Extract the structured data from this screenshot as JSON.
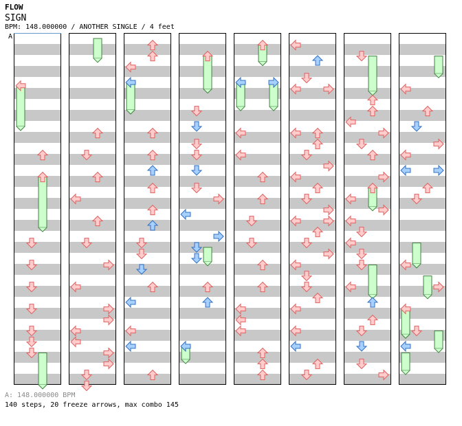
{
  "song": {
    "artist": "FLOW",
    "title": "SIGN",
    "info": "BPM: 148.000000 / ANOTHER SINGLE / 4 feet"
  },
  "bpm_marker": {
    "label": "A",
    "footer": "A: 148.000000 BPM"
  },
  "stats": "140 steps, 20 freeze arrows, max combo 145",
  "colors": {
    "band": "#c8c8c8",
    "column_border": "#000000",
    "arrow_red_fill": "#ffcccc",
    "arrow_red_stroke": "#e06060",
    "arrow_blue_fill": "#a8d0ff",
    "arrow_blue_stroke": "#3070c0",
    "freeze_fill": "#ccffcc",
    "freeze_stroke": "#408040",
    "bpm_line": "#6699cc"
  },
  "chart_data": {
    "type": "step-chart",
    "columns": 8,
    "beats_per_column": 16,
    "lanes": [
      "left",
      "down",
      "up",
      "right"
    ],
    "notes": [
      {
        "col": 0,
        "beat": 4.3,
        "lane": "left",
        "color": "red"
      },
      {
        "col": 0,
        "beat": 10.6,
        "lane": "up",
        "color": "red"
      },
      {
        "col": 0,
        "beat": 12.6,
        "lane": "up",
        "color": "red"
      },
      {
        "col": 0,
        "beat": 18.6,
        "lane": "down",
        "color": "red"
      },
      {
        "col": 0,
        "beat": 20.6,
        "lane": "down",
        "color": "red"
      },
      {
        "col": 0,
        "beat": 22.6,
        "lane": "down",
        "color": "red"
      },
      {
        "col": 0,
        "beat": 24.6,
        "lane": "down",
        "color": "red"
      },
      {
        "col": 0,
        "beat": 26.6,
        "lane": "down",
        "color": "red"
      },
      {
        "col": 0,
        "beat": 27.6,
        "lane": "down",
        "color": "red"
      },
      {
        "col": 0,
        "beat": 28.6,
        "lane": "down",
        "color": "red"
      },
      {
        "col": 1,
        "beat": 8.6,
        "lane": "up",
        "color": "red"
      },
      {
        "col": 1,
        "beat": 10.6,
        "lane": "down",
        "color": "red"
      },
      {
        "col": 1,
        "beat": 12.6,
        "lane": "up",
        "color": "red"
      },
      {
        "col": 1,
        "beat": 14.6,
        "lane": "left",
        "color": "red"
      },
      {
        "col": 1,
        "beat": 16.6,
        "lane": "up",
        "color": "red"
      },
      {
        "col": 1,
        "beat": 18.6,
        "lane": "down",
        "color": "red"
      },
      {
        "col": 1,
        "beat": 20.6,
        "lane": "right",
        "color": "red"
      },
      {
        "col": 1,
        "beat": 22.6,
        "lane": "left",
        "color": "red"
      },
      {
        "col": 1,
        "beat": 24.6,
        "lane": "right",
        "color": "red"
      },
      {
        "col": 1,
        "beat": 25.6,
        "lane": "right",
        "color": "red"
      },
      {
        "col": 1,
        "beat": 26.6,
        "lane": "left",
        "color": "red"
      },
      {
        "col": 1,
        "beat": 27.6,
        "lane": "left",
        "color": "red"
      },
      {
        "col": 1,
        "beat": 28.6,
        "lane": "right",
        "color": "red"
      },
      {
        "col": 1,
        "beat": 29.6,
        "lane": "right",
        "color": "red"
      },
      {
        "col": 1,
        "beat": 30.6,
        "lane": "down",
        "color": "red"
      },
      {
        "col": 1,
        "beat": 31.6,
        "lane": "down",
        "color": "red"
      },
      {
        "col": 2,
        "beat": 0.6,
        "lane": "up",
        "color": "red"
      },
      {
        "col": 2,
        "beat": 1.6,
        "lane": "up",
        "color": "red"
      },
      {
        "col": 2,
        "beat": 2.6,
        "lane": "left",
        "color": "red"
      },
      {
        "col": 2,
        "beat": 4.0,
        "lane": "left",
        "color": "blue"
      },
      {
        "col": 2,
        "beat": 8.6,
        "lane": "up",
        "color": "red"
      },
      {
        "col": 2,
        "beat": 10.6,
        "lane": "up",
        "color": "red"
      },
      {
        "col": 2,
        "beat": 12.0,
        "lane": "up",
        "color": "blue"
      },
      {
        "col": 2,
        "beat": 13.6,
        "lane": "up",
        "color": "red"
      },
      {
        "col": 2,
        "beat": 15.6,
        "lane": "up",
        "color": "red"
      },
      {
        "col": 2,
        "beat": 17.0,
        "lane": "up",
        "color": "blue"
      },
      {
        "col": 2,
        "beat": 18.6,
        "lane": "down",
        "color": "red"
      },
      {
        "col": 2,
        "beat": 19.6,
        "lane": "down",
        "color": "red"
      },
      {
        "col": 2,
        "beat": 21.0,
        "lane": "down",
        "color": "blue"
      },
      {
        "col": 2,
        "beat": 22.6,
        "lane": "up",
        "color": "red"
      },
      {
        "col": 2,
        "beat": 24.0,
        "lane": "left",
        "color": "blue"
      },
      {
        "col": 2,
        "beat": 26.6,
        "lane": "left",
        "color": "red"
      },
      {
        "col": 2,
        "beat": 28.0,
        "lane": "left",
        "color": "blue"
      },
      {
        "col": 2,
        "beat": 30.6,
        "lane": "up",
        "color": "red"
      },
      {
        "col": 2,
        "beat": 32.0,
        "lane": "up",
        "color": "blue"
      },
      {
        "col": 3,
        "beat": 1.6,
        "lane": "up",
        "color": "red"
      },
      {
        "col": 3,
        "beat": 6.6,
        "lane": "down",
        "color": "red"
      },
      {
        "col": 3,
        "beat": 8.0,
        "lane": "down",
        "color": "blue"
      },
      {
        "col": 3,
        "beat": 9.6,
        "lane": "down",
        "color": "red"
      },
      {
        "col": 3,
        "beat": 10.6,
        "lane": "down",
        "color": "red"
      },
      {
        "col": 3,
        "beat": 12.0,
        "lane": "down",
        "color": "blue"
      },
      {
        "col": 3,
        "beat": 13.6,
        "lane": "down",
        "color": "red"
      },
      {
        "col": 3,
        "beat": 14.6,
        "lane": "right",
        "color": "red"
      },
      {
        "col": 3,
        "beat": 16.0,
        "lane": "left",
        "color": "blue"
      },
      {
        "col": 3,
        "beat": 18.0,
        "lane": "right",
        "color": "blue"
      },
      {
        "col": 3,
        "beat": 19.0,
        "lane": "down",
        "color": "blue"
      },
      {
        "col": 3,
        "beat": 20.0,
        "lane": "down",
        "color": "blue"
      },
      {
        "col": 3,
        "beat": 22.6,
        "lane": "up",
        "color": "red"
      },
      {
        "col": 3,
        "beat": 24.0,
        "lane": "up",
        "color": "blue"
      },
      {
        "col": 3,
        "beat": 28.0,
        "lane": "left",
        "color": "blue"
      },
      {
        "col": 4,
        "beat": 0.6,
        "lane": "up",
        "color": "red"
      },
      {
        "col": 4,
        "beat": 4.0,
        "lane": "left",
        "color": "blue"
      },
      {
        "col": 4,
        "beat": 4.0,
        "lane": "right",
        "color": "blue"
      },
      {
        "col": 4,
        "beat": 8.6,
        "lane": "left",
        "color": "red"
      },
      {
        "col": 4,
        "beat": 10.6,
        "lane": "left",
        "color": "red"
      },
      {
        "col": 4,
        "beat": 12.6,
        "lane": "up",
        "color": "red"
      },
      {
        "col": 4,
        "beat": 14.6,
        "lane": "up",
        "color": "red"
      },
      {
        "col": 4,
        "beat": 16.6,
        "lane": "down",
        "color": "red"
      },
      {
        "col": 4,
        "beat": 18.6,
        "lane": "down",
        "color": "red"
      },
      {
        "col": 4,
        "beat": 20.6,
        "lane": "up",
        "color": "red"
      },
      {
        "col": 4,
        "beat": 22.6,
        "lane": "up",
        "color": "red"
      },
      {
        "col": 4,
        "beat": 24.6,
        "lane": "left",
        "color": "red"
      },
      {
        "col": 4,
        "beat": 25.6,
        "lane": "left",
        "color": "red"
      },
      {
        "col": 4,
        "beat": 26.6,
        "lane": "left",
        "color": "red"
      },
      {
        "col": 4,
        "beat": 28.6,
        "lane": "up",
        "color": "red"
      },
      {
        "col": 4,
        "beat": 29.6,
        "lane": "up",
        "color": "red"
      },
      {
        "col": 4,
        "beat": 30.6,
        "lane": "up",
        "color": "red"
      },
      {
        "col": 5,
        "beat": 0.6,
        "lane": "left",
        "color": "red"
      },
      {
        "col": 5,
        "beat": 2.0,
        "lane": "up",
        "color": "blue"
      },
      {
        "col": 5,
        "beat": 3.6,
        "lane": "down",
        "color": "red"
      },
      {
        "col": 5,
        "beat": 4.6,
        "lane": "left",
        "color": "red"
      },
      {
        "col": 5,
        "beat": 4.6,
        "lane": "right",
        "color": "red"
      },
      {
        "col": 5,
        "beat": 8.6,
        "lane": "left",
        "color": "red"
      },
      {
        "col": 5,
        "beat": 8.6,
        "lane": "up",
        "color": "red"
      },
      {
        "col": 5,
        "beat": 9.6,
        "lane": "up",
        "color": "red"
      },
      {
        "col": 5,
        "beat": 10.6,
        "lane": "down",
        "color": "red"
      },
      {
        "col": 5,
        "beat": 11.6,
        "lane": "right",
        "color": "red"
      },
      {
        "col": 5,
        "beat": 12.6,
        "lane": "left",
        "color": "red"
      },
      {
        "col": 5,
        "beat": 13.6,
        "lane": "up",
        "color": "red"
      },
      {
        "col": 5,
        "beat": 14.6,
        "lane": "down",
        "color": "red"
      },
      {
        "col": 5,
        "beat": 15.6,
        "lane": "right",
        "color": "red"
      },
      {
        "col": 5,
        "beat": 16.6,
        "lane": "left",
        "color": "red"
      },
      {
        "col": 5,
        "beat": 16.6,
        "lane": "right",
        "color": "red"
      },
      {
        "col": 5,
        "beat": 17.6,
        "lane": "up",
        "color": "red"
      },
      {
        "col": 5,
        "beat": 18.6,
        "lane": "down",
        "color": "red"
      },
      {
        "col": 5,
        "beat": 19.6,
        "lane": "right",
        "color": "red"
      },
      {
        "col": 5,
        "beat": 20.6,
        "lane": "left",
        "color": "red"
      },
      {
        "col": 5,
        "beat": 21.6,
        "lane": "down",
        "color": "red"
      },
      {
        "col": 5,
        "beat": 22.6,
        "lane": "down",
        "color": "red"
      },
      {
        "col": 5,
        "beat": 23.6,
        "lane": "up",
        "color": "red"
      },
      {
        "col": 5,
        "beat": 24.6,
        "lane": "left",
        "color": "red"
      },
      {
        "col": 5,
        "beat": 26.6,
        "lane": "left",
        "color": "red"
      },
      {
        "col": 5,
        "beat": 28.0,
        "lane": "left",
        "color": "blue"
      },
      {
        "col": 5,
        "beat": 29.6,
        "lane": "up",
        "color": "red"
      },
      {
        "col": 5,
        "beat": 30.6,
        "lane": "down",
        "color": "red"
      },
      {
        "col": 5,
        "beat": 32.0,
        "lane": "down",
        "color": "blue"
      },
      {
        "col": 6,
        "beat": 1.6,
        "lane": "down",
        "color": "red"
      },
      {
        "col": 6,
        "beat": 5.6,
        "lane": "up",
        "color": "red"
      },
      {
        "col": 6,
        "beat": 6.6,
        "lane": "up",
        "color": "red"
      },
      {
        "col": 6,
        "beat": 7.6,
        "lane": "left",
        "color": "red"
      },
      {
        "col": 6,
        "beat": 8.6,
        "lane": "right",
        "color": "red"
      },
      {
        "col": 6,
        "beat": 9.6,
        "lane": "down",
        "color": "red"
      },
      {
        "col": 6,
        "beat": 10.6,
        "lane": "up",
        "color": "red"
      },
      {
        "col": 6,
        "beat": 12.6,
        "lane": "right",
        "color": "red"
      },
      {
        "col": 6,
        "beat": 13.6,
        "lane": "up",
        "color": "red"
      },
      {
        "col": 6,
        "beat": 14.6,
        "lane": "left",
        "color": "red"
      },
      {
        "col": 6,
        "beat": 15.6,
        "lane": "right",
        "color": "red"
      },
      {
        "col": 6,
        "beat": 16.6,
        "lane": "left",
        "color": "red"
      },
      {
        "col": 6,
        "beat": 17.6,
        "lane": "down",
        "color": "red"
      },
      {
        "col": 6,
        "beat": 18.6,
        "lane": "left",
        "color": "red"
      },
      {
        "col": 6,
        "beat": 19.6,
        "lane": "down",
        "color": "red"
      },
      {
        "col": 6,
        "beat": 20.6,
        "lane": "down",
        "color": "red"
      },
      {
        "col": 6,
        "beat": 22.6,
        "lane": "left",
        "color": "red"
      },
      {
        "col": 6,
        "beat": 24.0,
        "lane": "up",
        "color": "blue"
      },
      {
        "col": 6,
        "beat": 25.6,
        "lane": "up",
        "color": "red"
      },
      {
        "col": 6,
        "beat": 26.6,
        "lane": "down",
        "color": "red"
      },
      {
        "col": 6,
        "beat": 28.0,
        "lane": "down",
        "color": "blue"
      },
      {
        "col": 6,
        "beat": 29.6,
        "lane": "down",
        "color": "red"
      },
      {
        "col": 6,
        "beat": 30.6,
        "lane": "right",
        "color": "red"
      },
      {
        "col": 6,
        "beat": 32.0,
        "lane": "right",
        "color": "blue"
      },
      {
        "col": 7,
        "beat": 4.6,
        "lane": "left",
        "color": "red"
      },
      {
        "col": 7,
        "beat": 6.6,
        "lane": "up",
        "color": "red"
      },
      {
        "col": 7,
        "beat": 8.0,
        "lane": "down",
        "color": "blue"
      },
      {
        "col": 7,
        "beat": 9.6,
        "lane": "right",
        "color": "red"
      },
      {
        "col": 7,
        "beat": 10.6,
        "lane": "left",
        "color": "red"
      },
      {
        "col": 7,
        "beat": 12.0,
        "lane": "left",
        "color": "blue"
      },
      {
        "col": 7,
        "beat": 12.0,
        "lane": "right",
        "color": "blue"
      },
      {
        "col": 7,
        "beat": 13.6,
        "lane": "up",
        "color": "red"
      },
      {
        "col": 7,
        "beat": 14.6,
        "lane": "down",
        "color": "red"
      },
      {
        "col": 7,
        "beat": 20.6,
        "lane": "left",
        "color": "red"
      },
      {
        "col": 7,
        "beat": 22.6,
        "lane": "right",
        "color": "red"
      },
      {
        "col": 7,
        "beat": 24.6,
        "lane": "left",
        "color": "red"
      },
      {
        "col": 7,
        "beat": 26.6,
        "lane": "down",
        "color": "red"
      },
      {
        "col": 7,
        "beat": 28.0,
        "lane": "left",
        "color": "blue"
      }
    ],
    "freezes": [
      {
        "col": 0,
        "lane": "left",
        "start": 4.3,
        "end": 8.0,
        "color": "red"
      },
      {
        "col": 0,
        "lane": "down",
        "start": 0,
        "end": 0.1,
        "color": "none"
      },
      {
        "col": 0,
        "lane": "up",
        "start": 12.6,
        "end": 17.2,
        "color": "red"
      },
      {
        "col": 0,
        "lane": "up",
        "start": 28.6,
        "end": 32.0,
        "color": "red"
      },
      {
        "col": 1,
        "lane": "up",
        "start": 0,
        "end": 1.8,
        "color": "none"
      },
      {
        "col": 2,
        "lane": "left",
        "start": 4.0,
        "end": 6.5,
        "color": "blue"
      },
      {
        "col": 3,
        "lane": "up",
        "start": 1.6,
        "end": 4.6,
        "color": "red"
      },
      {
        "col": 3,
        "lane": "up",
        "start": 19.0,
        "end": 20.3,
        "color": "blue"
      },
      {
        "col": 3,
        "lane": "left",
        "start": 28.0,
        "end": 29.2,
        "color": "blue"
      },
      {
        "col": 4,
        "lane": "up",
        "start": 0.6,
        "end": 2.1,
        "color": "red"
      },
      {
        "col": 4,
        "lane": "left",
        "start": 4.0,
        "end": 6.2,
        "color": "blue"
      },
      {
        "col": 4,
        "lane": "right",
        "start": 4.0,
        "end": 6.2,
        "color": "blue"
      },
      {
        "col": 6,
        "lane": "up",
        "start": 1.6,
        "end": 4.8,
        "color": "red"
      },
      {
        "col": 6,
        "lane": "up",
        "start": 13.6,
        "end": 15.3,
        "color": "red"
      },
      {
        "col": 6,
        "lane": "up",
        "start": 20.6,
        "end": 23.3,
        "color": "red"
      },
      {
        "col": 7,
        "lane": "right",
        "start": 1.6,
        "end": 3.2,
        "color": "red"
      },
      {
        "col": 7,
        "lane": "down",
        "start": 18.6,
        "end": 20.5,
        "color": "red"
      },
      {
        "col": 7,
        "lane": "up",
        "start": 21.6,
        "end": 23.3,
        "color": "red"
      },
      {
        "col": 7,
        "lane": "left",
        "start": 24.6,
        "end": 26.9,
        "color": "red"
      },
      {
        "col": 7,
        "lane": "right",
        "start": 26.6,
        "end": 28.2,
        "color": "red"
      },
      {
        "col": 7,
        "lane": "left",
        "start": 28.6,
        "end": 30.2,
        "color": "red"
      },
      {
        "col": 7,
        "lane": "left",
        "start": 32.0,
        "end": 34.2,
        "color": "blue"
      }
    ]
  }
}
